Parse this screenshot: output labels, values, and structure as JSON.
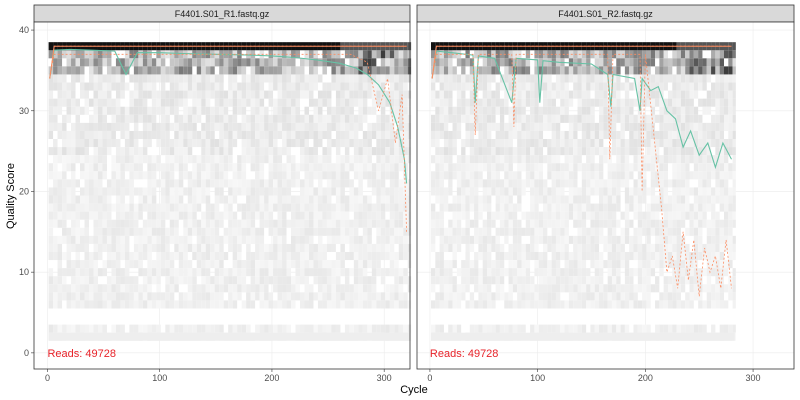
{
  "chart_data": [
    {
      "type": "heatmap",
      "title": "F4401.S01_R1.fastq.gz",
      "xlabel": "Cycle",
      "ylabel": "Quality Score",
      "xlim": [
        -12,
        323
      ],
      "ylim": [
        -2,
        41
      ],
      "x_ticks": [
        0,
        100,
        200,
        300
      ],
      "y_ticks": [
        0,
        10,
        20,
        30,
        40
      ],
      "reads_label": "Reads:  49728",
      "colors": {
        "mean": "#66C2A5",
        "quartile": "#FC8D62",
        "heat_high": "#000000",
        "heat_low": "#F0F0F0",
        "reads": "#E8232A"
      },
      "series": [
        {
          "name": "mean",
          "x": [
            2,
            6,
            20,
            40,
            60,
            70,
            80,
            100,
            120,
            150,
            180,
            200,
            220,
            240,
            260,
            275,
            285,
            295,
            305,
            312,
            318,
            320
          ],
          "y": [
            34,
            37.5,
            37.6,
            37.5,
            37.4,
            34.5,
            37.2,
            37.2,
            37.1,
            37,
            36.9,
            36.8,
            36.6,
            36.3,
            35.9,
            35.3,
            34.5,
            33.2,
            31,
            28,
            24,
            21
          ]
        },
        {
          "name": "median",
          "x": [
            2,
            6,
            320
          ],
          "y": [
            34,
            38,
            38
          ]
        },
        {
          "name": "q25",
          "x": [
            2,
            6,
            270,
            285,
            295,
            303,
            310,
            316,
            320
          ],
          "y": [
            34,
            37,
            37,
            36,
            30,
            34,
            26,
            32,
            15
          ]
        },
        {
          "name": "q75",
          "x": [
            2,
            6,
            320
          ],
          "y": [
            34,
            38,
            38
          ]
        }
      ]
    },
    {
      "type": "heatmap",
      "title": "F4401.S01_R2.fastq.gz",
      "xlabel": "Cycle",
      "ylabel": "Quality Score",
      "xlim": [
        -12,
        338
      ],
      "ylim": [
        -2,
        41
      ],
      "x_ticks": [
        0,
        100,
        200,
        300
      ],
      "y_ticks": [
        0,
        10,
        20,
        30,
        40
      ],
      "reads_label": "Reads:  49728",
      "colors": {
        "mean": "#66C2A5",
        "quartile": "#FC8D62",
        "heat_high": "#000000",
        "heat_low": "#F0F0F0",
        "reads": "#E8232A"
      },
      "series": [
        {
          "name": "mean",
          "x": [
            2,
            6,
            20,
            40,
            42,
            45,
            60,
            76,
            80,
            100,
            102,
            105,
            120,
            150,
            165,
            168,
            170,
            190,
            195,
            197,
            205,
            212,
            220,
            228,
            235,
            242,
            250,
            258,
            265,
            272,
            280
          ],
          "y": [
            34,
            37.4,
            37.2,
            36.9,
            31,
            36.8,
            36.5,
            31,
            36.5,
            36.3,
            31,
            36.2,
            36,
            35.8,
            34.5,
            30.5,
            34.5,
            34,
            30,
            34,
            32.5,
            33,
            30,
            29,
            25.5,
            27.5,
            24.5,
            26,
            23,
            26,
            24
          ]
        },
        {
          "name": "median",
          "x": [
            2,
            6,
            280
          ],
          "y": [
            34,
            38,
            38
          ]
        },
        {
          "name": "q25",
          "x": [
            2,
            6,
            40,
            42,
            45,
            76,
            78,
            80,
            165,
            167,
            170,
            195,
            197,
            200,
            215,
            220,
            225,
            230,
            235,
            240,
            245,
            250,
            255,
            260,
            265,
            270,
            275,
            280
          ],
          "y": [
            34,
            37,
            37,
            27,
            37,
            37,
            28,
            37,
            37,
            24,
            37,
            37,
            20,
            37,
            18,
            10,
            12,
            8,
            15,
            9,
            14,
            7,
            13,
            10,
            12,
            8,
            14,
            8
          ]
        },
        {
          "name": "q75",
          "x": [
            2,
            6,
            280
          ],
          "y": [
            34,
            38,
            38
          ]
        }
      ]
    }
  ]
}
